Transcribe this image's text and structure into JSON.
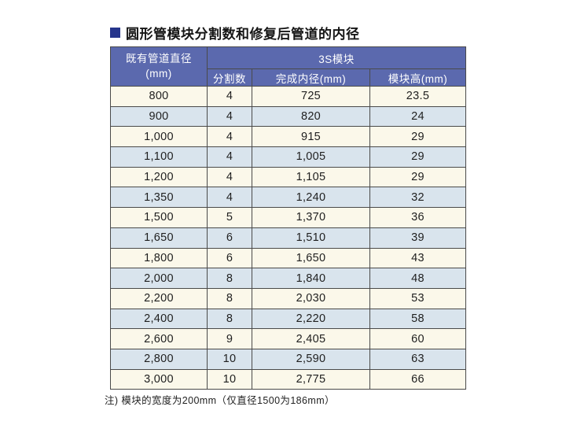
{
  "document": {
    "title": "圆形管模块分割数和修复后管道的内径",
    "note": "注) 模块的宽度为200mm（仅直径1500为186mm）"
  },
  "table": {
    "row_header": {
      "line1": "既有管道直径",
      "line2": "(mm)"
    },
    "group_header": "3S模块",
    "sub_headers": [
      "分割数",
      "完成内径(mm)",
      "模块高(mm)"
    ],
    "rows": [
      [
        "800",
        "4",
        "725",
        "23.5"
      ],
      [
        "900",
        "4",
        "820",
        "24"
      ],
      [
        "1,000",
        "4",
        "915",
        "29"
      ],
      [
        "1,100",
        "4",
        "1,005",
        "29"
      ],
      [
        "1,200",
        "4",
        "1,105",
        "29"
      ],
      [
        "1,350",
        "4",
        "1,240",
        "32"
      ],
      [
        "1,500",
        "5",
        "1,370",
        "36"
      ],
      [
        "1,650",
        "6",
        "1,510",
        "39"
      ],
      [
        "1,800",
        "6",
        "1,650",
        "43"
      ],
      [
        "2,000",
        "8",
        "1,840",
        "48"
      ],
      [
        "2,200",
        "8",
        "2,030",
        "53"
      ],
      [
        "2,400",
        "8",
        "2,220",
        "58"
      ],
      [
        "2,600",
        "9",
        "2,405",
        "60"
      ],
      [
        "2,800",
        "10",
        "2,590",
        "63"
      ],
      [
        "3,000",
        "10",
        "2,775",
        "66"
      ]
    ]
  },
  "colors": {
    "header_bg": "#5b69ae",
    "row_cream": "#fbf8ea",
    "row_blue": "#d9e4ed",
    "title_bullet": "#26358c",
    "border": "#4a4a4a"
  }
}
